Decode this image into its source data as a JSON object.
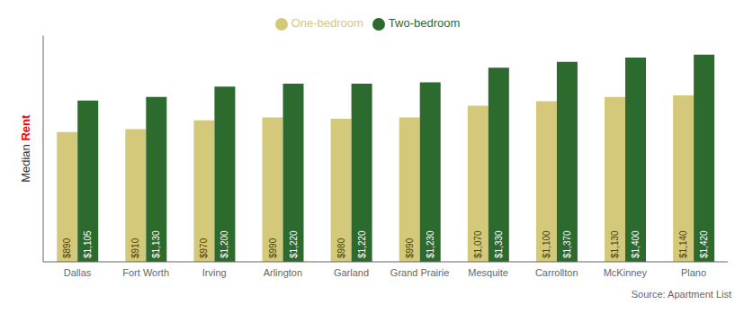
{
  "chart_data": {
    "type": "bar",
    "categories": [
      "Dallas",
      "Fort Worth",
      "Irving",
      "Arlington",
      "Garland",
      "Grand Prairie",
      "Mesquite",
      "Carrollton",
      "McKinney",
      "Plano"
    ],
    "series": [
      {
        "name": "One-bedroom",
        "color": "#d4c97a",
        "values": [
          890,
          910,
          970,
          990,
          980,
          990,
          1070,
          1100,
          1130,
          1140
        ],
        "value_labels": [
          "$890",
          "$910",
          "$970",
          "$990",
          "$980",
          "$990",
          "$1,070",
          "$1,100",
          "$1,130",
          "$1,140"
        ]
      },
      {
        "name": "Two-bedroom",
        "color": "#2d6a2d",
        "values": [
          1105,
          1130,
          1200,
          1220,
          1220,
          1230,
          1330,
          1370,
          1400,
          1420
        ],
        "value_labels": [
          "$1,105",
          "$1,130",
          "$1,200",
          "$1,220",
          "$1,220",
          "$1,230",
          "$1,330",
          "$1,370",
          "$1,400",
          "$1,420"
        ]
      }
    ],
    "ylabel": "Median Rent",
    "annotations": [
      "Source: Apartment List"
    ],
    "ylim": [
      0,
      1550
    ],
    "grid": false,
    "legend": "upper center",
    "data_labels": true,
    "tick_labels": "x"
  }
}
